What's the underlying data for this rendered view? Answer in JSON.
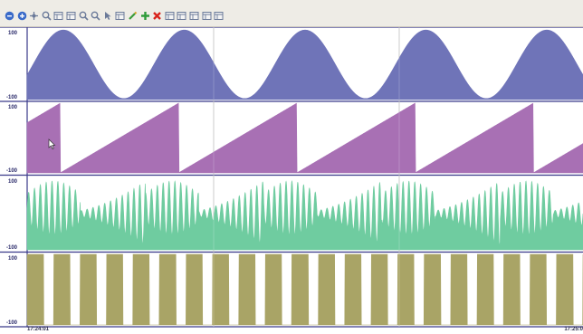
{
  "toolbar": {
    "buttons": [
      {
        "name": "zoom-out-all-icon",
        "color": "#3a6bc9"
      },
      {
        "name": "zoom-in-all-icon",
        "color": "#3a6bc9"
      },
      {
        "name": "pan-icon",
        "color": "#6b7a99"
      },
      {
        "name": "zoom-box-icon",
        "color": "#6b7a99"
      },
      {
        "name": "zoom-horizontal-icon",
        "color": "#6b7a99"
      },
      {
        "name": "zoom-vertical-icon",
        "color": "#6b7a99"
      },
      {
        "name": "zoom-in-icon",
        "color": "#6b7a99"
      },
      {
        "name": "zoom-out-icon",
        "color": "#6b7a99"
      },
      {
        "name": "cursor-icon",
        "color": "#6b7a99"
      },
      {
        "name": "table-view-icon",
        "color": "#6b7a99"
      },
      {
        "name": "edit-icon",
        "color": "#3a9c3a"
      },
      {
        "name": "add-icon",
        "color": "#2e9b3a"
      },
      {
        "name": "delete-icon",
        "color": "#d8231c"
      },
      {
        "name": "grid-view-icon",
        "color": "#6b7a99"
      },
      {
        "name": "layout-icon",
        "color": "#6b7a99"
      },
      {
        "name": "save-icon",
        "color": "#6b7a99"
      },
      {
        "name": "print-icon",
        "color": "#6b7a99"
      },
      {
        "name": "export-icon",
        "color": "#6b7a99"
      }
    ]
  },
  "chart_data": {
    "type": "area",
    "shared_x": true,
    "x_start_label": "17:24:01",
    "x_end_label": "17:25:0",
    "grid": true,
    "series": [
      {
        "kind": "sine",
        "color": "#6f74b8",
        "ymax_label": "100",
        "ymin_label": "-100",
        "ylim": [
          -100,
          100
        ],
        "cycles": 4.6,
        "phase": 0.2
      },
      {
        "kind": "sawtooth",
        "color": "#a870b4",
        "ymax_label": "100",
        "ymin_label": "-100",
        "ylim": [
          -100,
          100
        ],
        "cycles": 4.7
      },
      {
        "kind": "burst",
        "color": "#6fcca0",
        "ymax_label": "100",
        "ymin_label": "-100",
        "ylim": [
          -100,
          100
        ],
        "cycles": 4.7
      },
      {
        "kind": "square",
        "color": "#a9a466",
        "ymax_label": "100",
        "ymin_label": "-100",
        "ylim": [
          -100,
          100
        ],
        "pulses": 21
      }
    ]
  }
}
